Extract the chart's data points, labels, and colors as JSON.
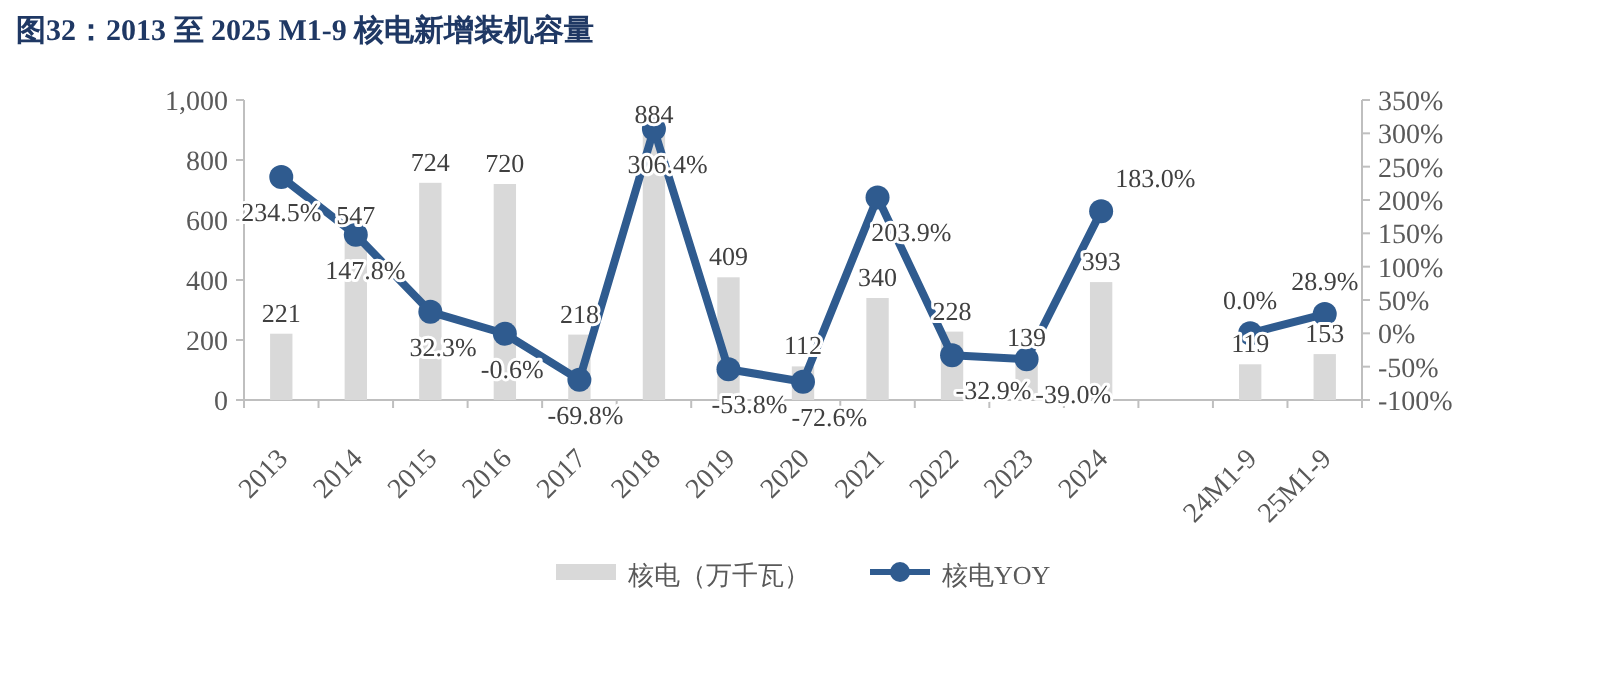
{
  "chart_data": {
    "type": "bar",
    "title": "图32：2013 至 2025 M1-9 核电新增装机容量",
    "categories": [
      "2013",
      "2014",
      "2015",
      "2016",
      "2017",
      "2018",
      "2019",
      "2020",
      "2021",
      "2022",
      "2023",
      "2024",
      null,
      "24M1-9",
      "25M1-9"
    ],
    "series": [
      {
        "name": "核电（万千瓦）",
        "color": "#d9d9d9",
        "values": [
          221,
          547,
          724,
          720,
          218,
          884,
          409,
          112,
          340,
          228,
          139,
          393,
          null,
          119,
          153
        ],
        "value_labels": [
          "221",
          "547",
          "724",
          "720",
          "218",
          "884",
          "409",
          "112",
          "340",
          "228",
          "139",
          "393",
          null,
          "119",
          "153"
        ]
      },
      {
        "name": "核电YOY",
        "type": "line",
        "axis": "y2",
        "color": "#2f5b8f",
        "values": [
          234.5,
          147.8,
          32.3,
          -0.6,
          -69.8,
          306.4,
          -53.8,
          -72.6,
          203.9,
          -32.9,
          -39.0,
          183.0,
          null,
          0.0,
          28.9
        ],
        "value_labels": [
          "234.5%",
          "147.8%",
          "32.3%",
          "-0.6%",
          "-69.8%",
          "306.4%",
          "-53.8%",
          "-72.6%",
          "203.9%",
          "-32.9%",
          "-39.0%",
          "183.0%",
          null,
          "0.0%",
          "28.9%"
        ]
      }
    ],
    "ylim": [
      0,
      1000
    ],
    "yticks": [
      0,
      200,
      400,
      600,
      800,
      {
        "value": 1000,
        "label": "1,000"
      }
    ],
    "y2lim": [
      -100,
      350
    ],
    "y2ticks": [
      {
        "value": -100,
        "label": "-100%"
      },
      {
        "value": -50,
        "label": "-50%"
      },
      {
        "value": 0,
        "label": "0%"
      },
      {
        "value": 50,
        "label": "50%"
      },
      {
        "value": 100,
        "label": "100%"
      },
      {
        "value": 150,
        "label": "150%"
      },
      {
        "value": 200,
        "label": "200%"
      },
      {
        "value": 250,
        "label": "250%"
      },
      {
        "value": 300,
        "label": "300%"
      },
      {
        "value": 350,
        "label": "350%"
      }
    ],
    "legend": "bottom",
    "marker": "circle",
    "grid": false
  }
}
